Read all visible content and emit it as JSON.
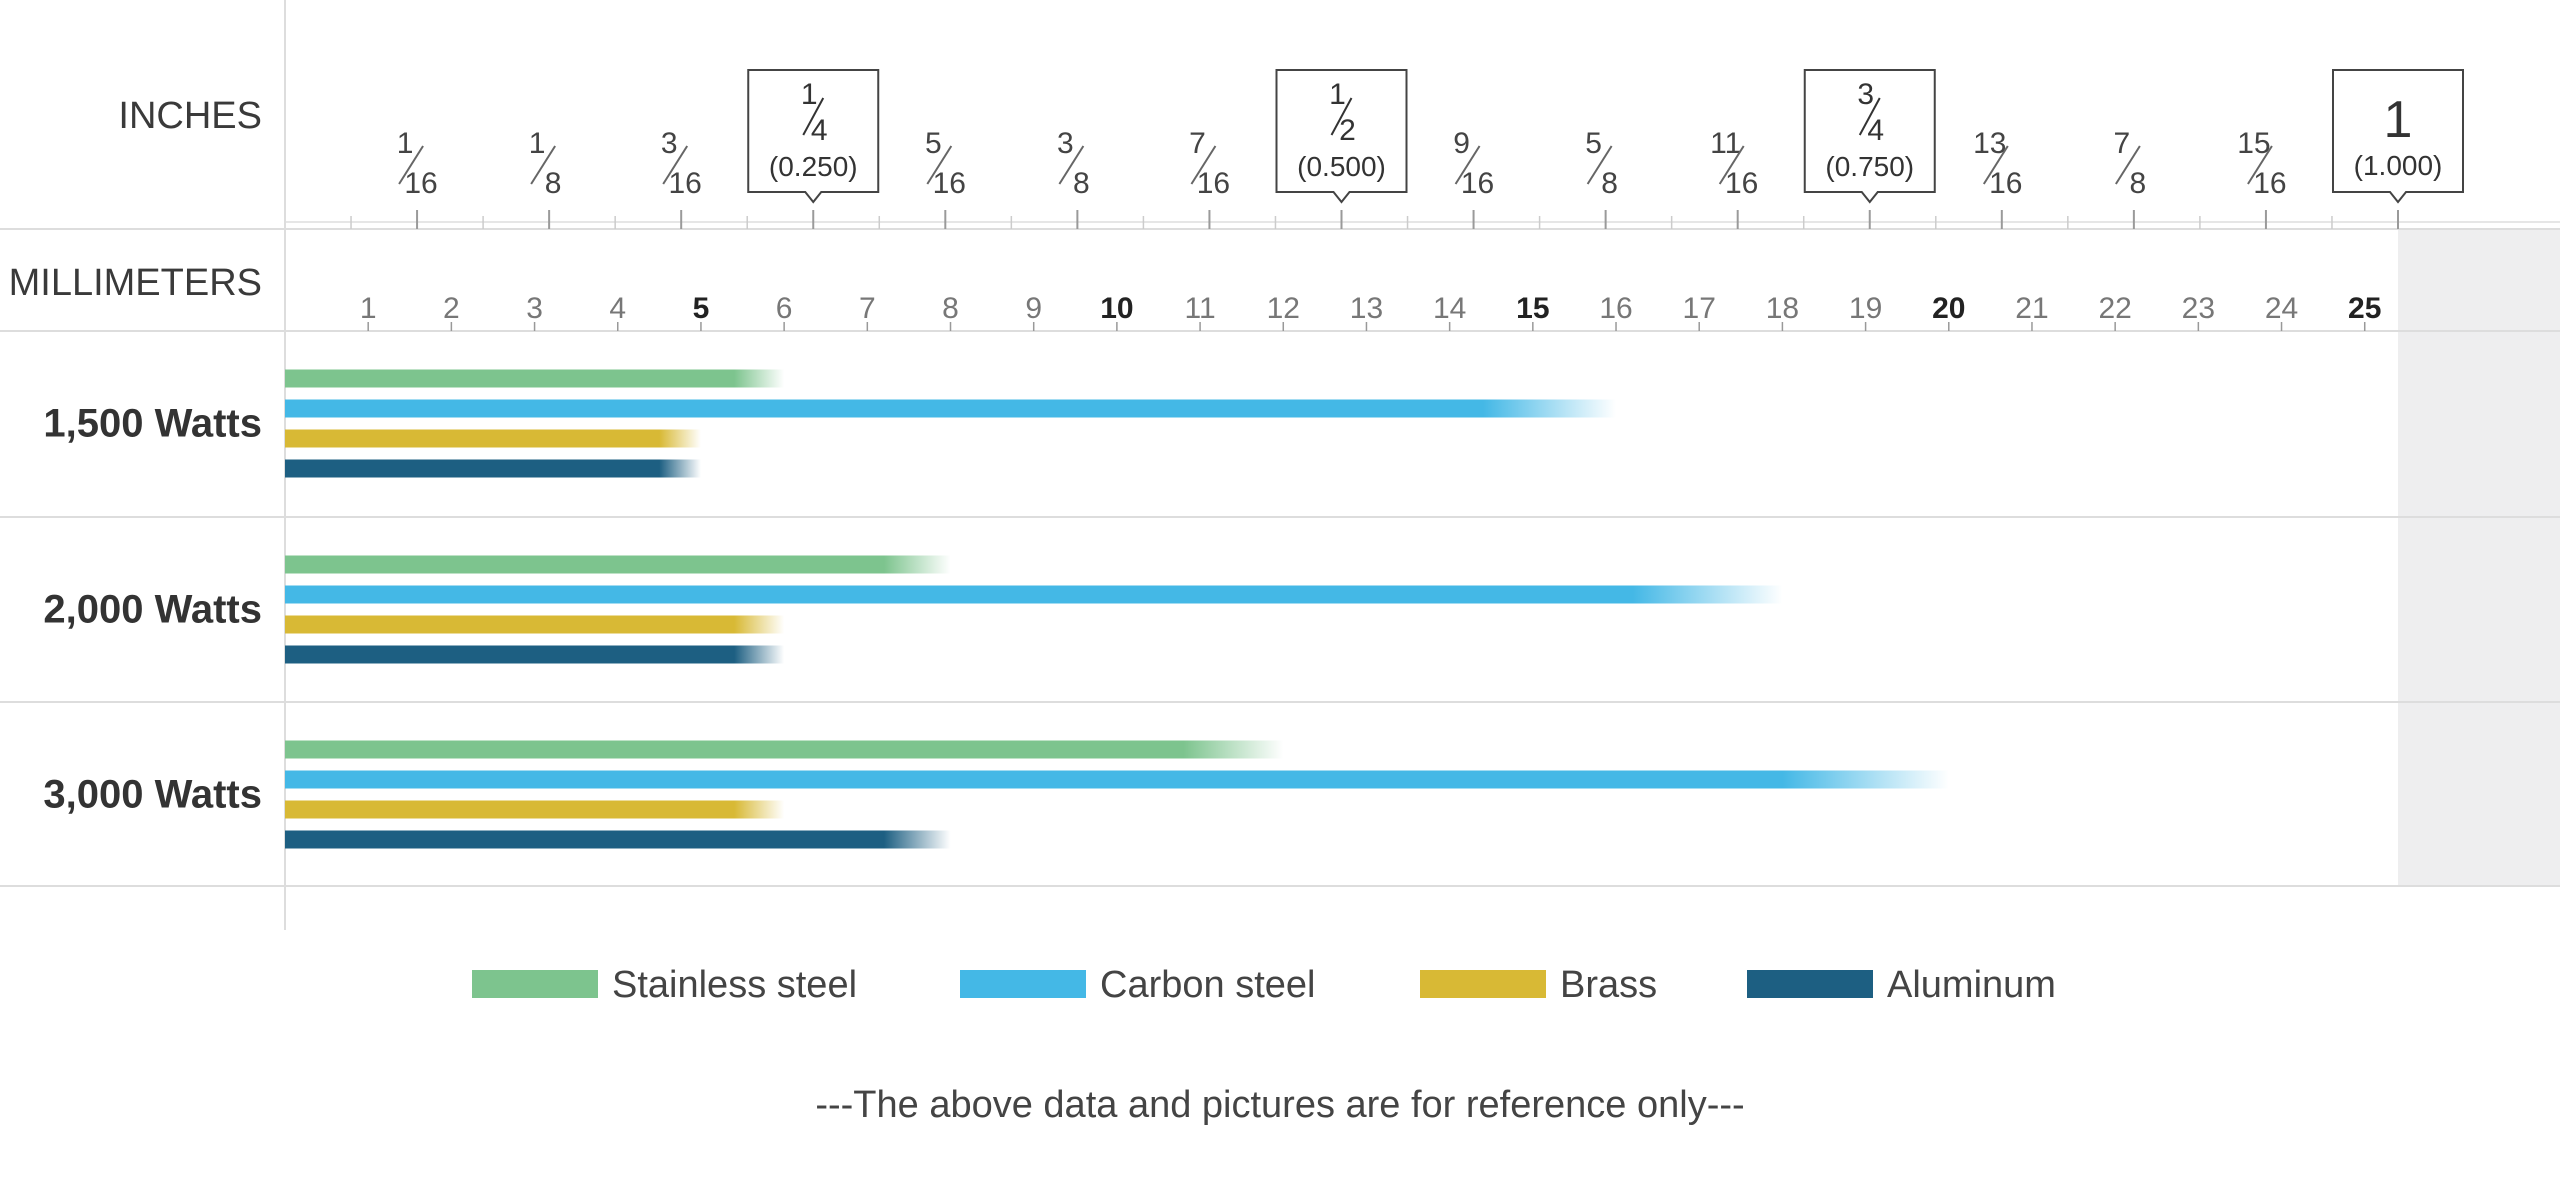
{
  "chart_data": {
    "type": "bar",
    "orientation": "horizontal",
    "title": "",
    "x_unit_labels": {
      "inches": "INCHES",
      "millimeters": "MILLIMETERS"
    },
    "xlim_mm": [
      0,
      25.4
    ],
    "mm_ticks": [
      "1",
      "2",
      "3",
      "4",
      "5",
      "6",
      "7",
      "8",
      "9",
      "10",
      "11",
      "12",
      "13",
      "14",
      "15",
      "16",
      "17",
      "18",
      "19",
      "20",
      "21",
      "22",
      "23",
      "24",
      "25"
    ],
    "mm_bold_ticks": [
      "5",
      "10",
      "15",
      "20",
      "25"
    ],
    "inch_fractions": [
      {
        "num": "1",
        "den": "16"
      },
      {
        "num": "1",
        "den": "8"
      },
      {
        "num": "3",
        "den": "16"
      },
      {
        "num": "1",
        "den": "4",
        "boxed": true,
        "decimal": "(0.250)"
      },
      {
        "num": "5",
        "den": "16"
      },
      {
        "num": "3",
        "den": "8"
      },
      {
        "num": "7",
        "den": "16"
      },
      {
        "num": "1",
        "den": "2",
        "boxed": true,
        "decimal": "(0.500)"
      },
      {
        "num": "9",
        "den": "16"
      },
      {
        "num": "5",
        "den": "8"
      },
      {
        "num": "11",
        "den": "16"
      },
      {
        "num": "3",
        "den": "4",
        "boxed": true,
        "decimal": "(0.750)"
      },
      {
        "num": "13",
        "den": "16"
      },
      {
        "num": "7",
        "den": "8"
      },
      {
        "num": "15",
        "den": "16"
      },
      {
        "whole": "1",
        "boxed": true,
        "decimal": "(1.000)"
      }
    ],
    "categories": [
      "1,500 Watts",
      "2,000 Watts",
      "3,000 Watts"
    ],
    "series": [
      {
        "name": "Stainless steel",
        "color": "#7dc48e",
        "values": [
          6,
          8,
          12
        ]
      },
      {
        "name": "Carbon steel",
        "color": "#44b8e6",
        "values": [
          16,
          18,
          20
        ]
      },
      {
        "name": "Brass",
        "color": "#d8b935",
        "values": [
          5,
          6,
          6
        ]
      },
      {
        "name": "Aluminum",
        "color": "#1d5f82",
        "values": [
          5,
          6,
          8
        ]
      }
    ],
    "footnote": "---The above data and pictures are for reference only---"
  }
}
